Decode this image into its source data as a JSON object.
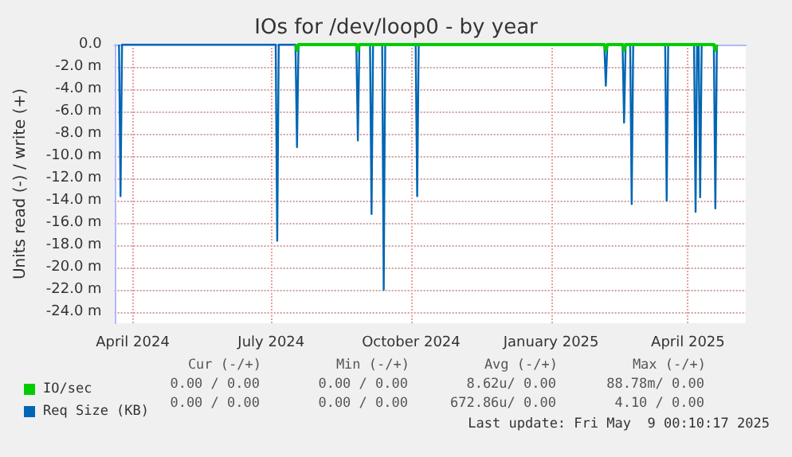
{
  "chart_data": {
    "type": "line",
    "title": "IOs for /dev/loop0 - by year",
    "ylabel": "Units read (-) / write (+)",
    "xlim": [
      "2024-03-20",
      "2025-05-09"
    ],
    "xticks": [
      {
        "value": "2024-04-01",
        "label": "April 2024"
      },
      {
        "value": "2024-07-01",
        "label": "July 2024"
      },
      {
        "value": "2024-10-01",
        "label": "October 2024"
      },
      {
        "value": "2025-01-01",
        "label": "January 2025"
      },
      {
        "value": "2025-04-01",
        "label": "April 2025"
      }
    ],
    "ylim": [
      -25,
      0
    ],
    "yticks": [
      {
        "value": 0,
        "label": "0.0"
      },
      {
        "value": -2,
        "label": "-2.0 m"
      },
      {
        "value": -4,
        "label": "-4.0 m"
      },
      {
        "value": -6,
        "label": "-6.0 m"
      },
      {
        "value": -8,
        "label": "-8.0 m"
      },
      {
        "value": -10,
        "label": "-10.0 m"
      },
      {
        "value": -12,
        "label": "-12.0 m"
      },
      {
        "value": -14,
        "label": "-14.0 m"
      },
      {
        "value": -16,
        "label": "-16.0 m"
      },
      {
        "value": -18,
        "label": "-18.0 m"
      },
      {
        "value": -20,
        "label": "-20.0 m"
      },
      {
        "value": -22,
        "label": "-22.0 m"
      },
      {
        "value": -24,
        "label": "-24.0 m"
      }
    ],
    "grid": true,
    "legend": "bottom left",
    "marker": "none",
    "line_style": "solid",
    "series": [
      {
        "name": "IO/sec",
        "color": "#00cc00",
        "x": [
          "2024-07-17",
          "2024-07-18",
          "2024-07-19",
          "2024-08-26",
          "2024-08-27",
          "2024-08-28",
          "2025-02-05",
          "2025-02-06",
          "2025-02-07",
          "2025-02-17",
          "2025-02-18",
          "2025-02-19",
          "2025-04-18",
          "2025-04-19",
          "2025-04-20"
        ],
        "values": [
          0,
          -0.5,
          0,
          0,
          -0.5,
          0,
          0,
          -0.5,
          0,
          0,
          -0.5,
          0,
          0,
          -0.5,
          0
        ]
      },
      {
        "name": "Req Size (KB)",
        "color": "#0066b3",
        "x": [
          "2024-03-23",
          "2024-03-24",
          "2024-03-25",
          "2024-07-04",
          "2024-07-05",
          "2024-07-06",
          "2024-07-17",
          "2024-07-18",
          "2024-07-19",
          "2024-08-26",
          "2024-08-27",
          "2024-08-28",
          "2024-09-04",
          "2024-09-05",
          "2024-09-06",
          "2024-09-12",
          "2024-09-13",
          "2024-09-14",
          "2024-10-04",
          "2024-10-05",
          "2024-10-06",
          "2025-02-05",
          "2025-02-06",
          "2025-02-07",
          "2025-02-17",
          "2025-02-18",
          "2025-02-19",
          "2025-02-22",
          "2025-02-23",
          "2025-02-24",
          "2025-03-17",
          "2025-03-18",
          "2025-03-19",
          "2025-04-05",
          "2025-04-06",
          "2025-04-07",
          "2025-04-08",
          "2025-04-09",
          "2025-04-10",
          "2025-04-18",
          "2025-04-19",
          "2025-04-20"
        ],
        "values": [
          0,
          -13.6,
          0,
          0,
          -17.6,
          0,
          0,
          -9.2,
          0,
          0,
          -8.6,
          0,
          0,
          -15.2,
          0,
          0,
          -22,
          0,
          0,
          -13.6,
          0,
          0,
          -3.7,
          0,
          0,
          -7,
          0,
          0,
          -14.3,
          0,
          0,
          -14,
          0,
          0,
          -15,
          0,
          0,
          -13.7,
          0,
          0,
          -14.7,
          0
        ]
      }
    ],
    "annotations": [
      "Cur (-/+)",
      "Min (-/+)",
      "Avg (-/+)",
      "Max (-/+)",
      "0.00 / 0.00",
      "0.00 / 0.00",
      "8.62u/ 0.00",
      "88.78m/ 0.00",
      "0.00 / 0.00",
      "0.00 / 0.00",
      "672.86u/ 0.00",
      "4.10 / 0.00",
      "Last update: Fri May  9 00:10:17 2025"
    ]
  }
}
